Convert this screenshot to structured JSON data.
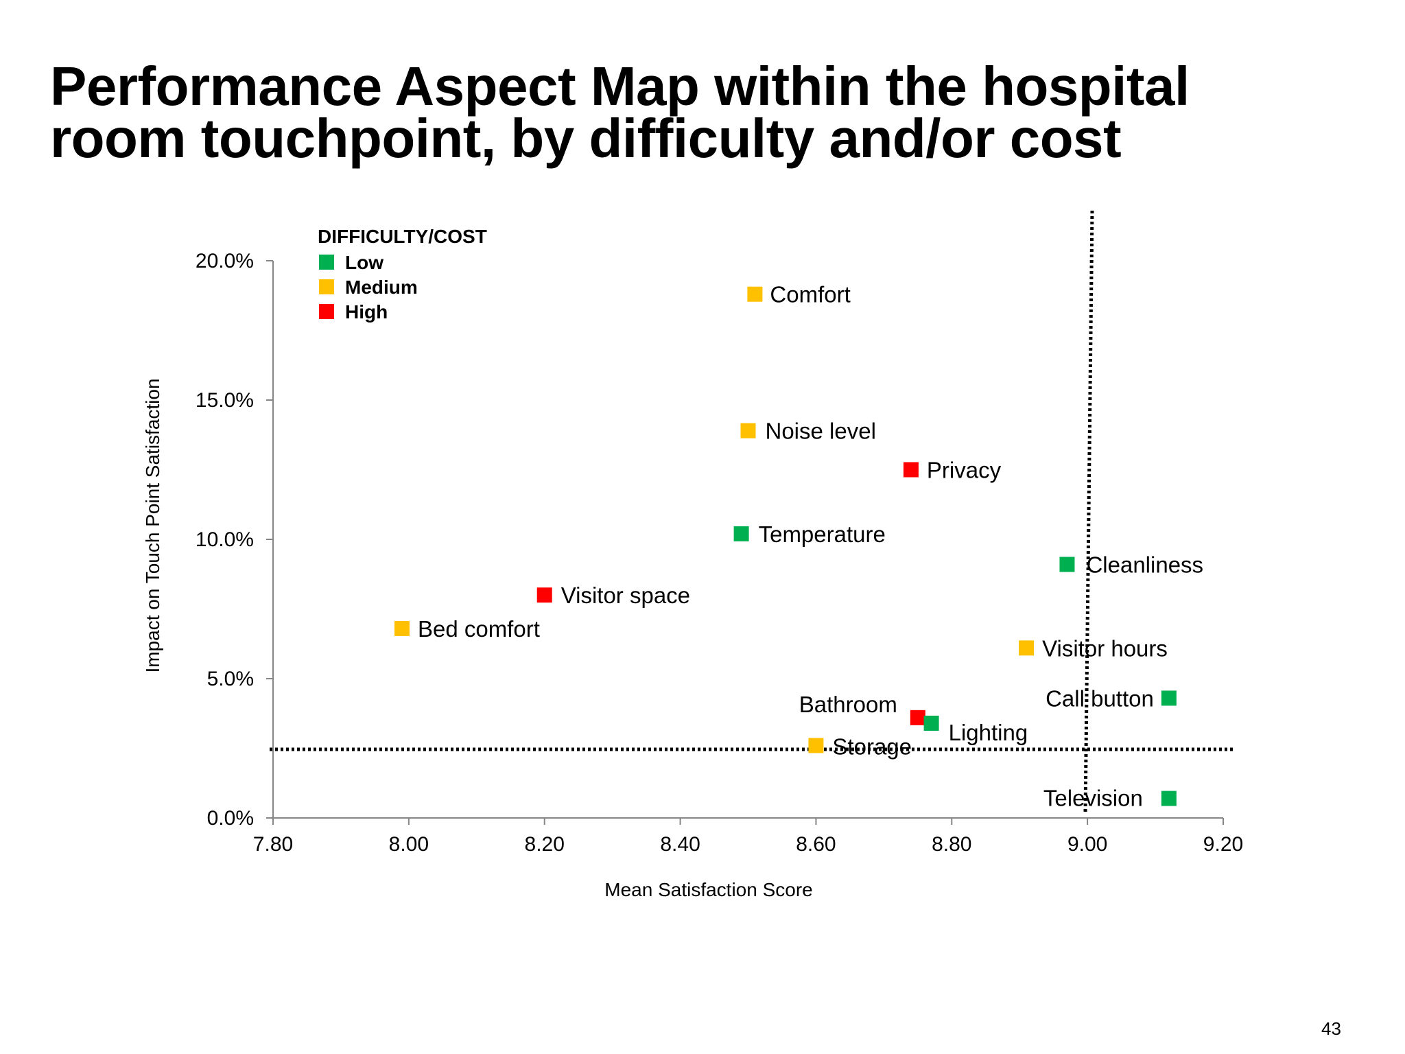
{
  "slide": {
    "title_line1": "Performance Aspect Map within the hospital",
    "title_line2": "room touchpoint, by difficulty and/or cost",
    "page_number": "43"
  },
  "colors": {
    "low": "#00B050",
    "medium": "#FFC000",
    "high": "#FF0000"
  },
  "chart_data": {
    "type": "scatter",
    "title": "",
    "xlabel": "Mean Satisfaction Score",
    "ylabel": "Impact on Touch Point Satisfaction",
    "xlim": [
      7.8,
      9.2
    ],
    "ylim": [
      0,
      20
    ],
    "x_ticks": [
      "7.80",
      "8.00",
      "8.20",
      "8.40",
      "8.60",
      "8.80",
      "9.00",
      "9.20"
    ],
    "y_ticks": [
      "0.0%",
      "5.0%",
      "10.0%",
      "15.0%",
      "20.0%"
    ],
    "grid": false,
    "legend": {
      "title": "DIFFICULTY/COST",
      "position": "top-left",
      "items": [
        {
          "label": "Low",
          "level": "low"
        },
        {
          "label": "Medium",
          "level": "medium"
        },
        {
          "label": "High",
          "level": "high"
        }
      ]
    },
    "reference_lines": {
      "x": 9.0,
      "y": 2.4
    },
    "points": [
      {
        "label": "Comfort",
        "x": 8.51,
        "y": 18.8,
        "level": "medium"
      },
      {
        "label": "Noise level",
        "x": 8.5,
        "y": 13.9,
        "level": "medium"
      },
      {
        "label": "Privacy",
        "x": 8.74,
        "y": 12.5,
        "level": "high"
      },
      {
        "label": "Temperature",
        "x": 8.49,
        "y": 10.2,
        "level": "low"
      },
      {
        "label": "Cleanliness",
        "x": 8.97,
        "y": 9.1,
        "level": "low"
      },
      {
        "label": "Visitor space",
        "x": 8.2,
        "y": 8.0,
        "level": "high"
      },
      {
        "label": "Bed comfort",
        "x": 7.99,
        "y": 6.8,
        "level": "medium"
      },
      {
        "label": "Visitor hours",
        "x": 8.91,
        "y": 6.1,
        "level": "medium"
      },
      {
        "label": "Call button",
        "x": 9.12,
        "y": 4.3,
        "level": "low"
      },
      {
        "label": "Bathroom",
        "x": 8.75,
        "y": 3.6,
        "level": "high"
      },
      {
        "label": "Lighting",
        "x": 8.77,
        "y": 3.4,
        "level": "low"
      },
      {
        "label": "Storage",
        "x": 8.6,
        "y": 2.6,
        "level": "medium"
      },
      {
        "label": "Television",
        "x": 9.12,
        "y": 0.7,
        "level": "low"
      }
    ]
  }
}
